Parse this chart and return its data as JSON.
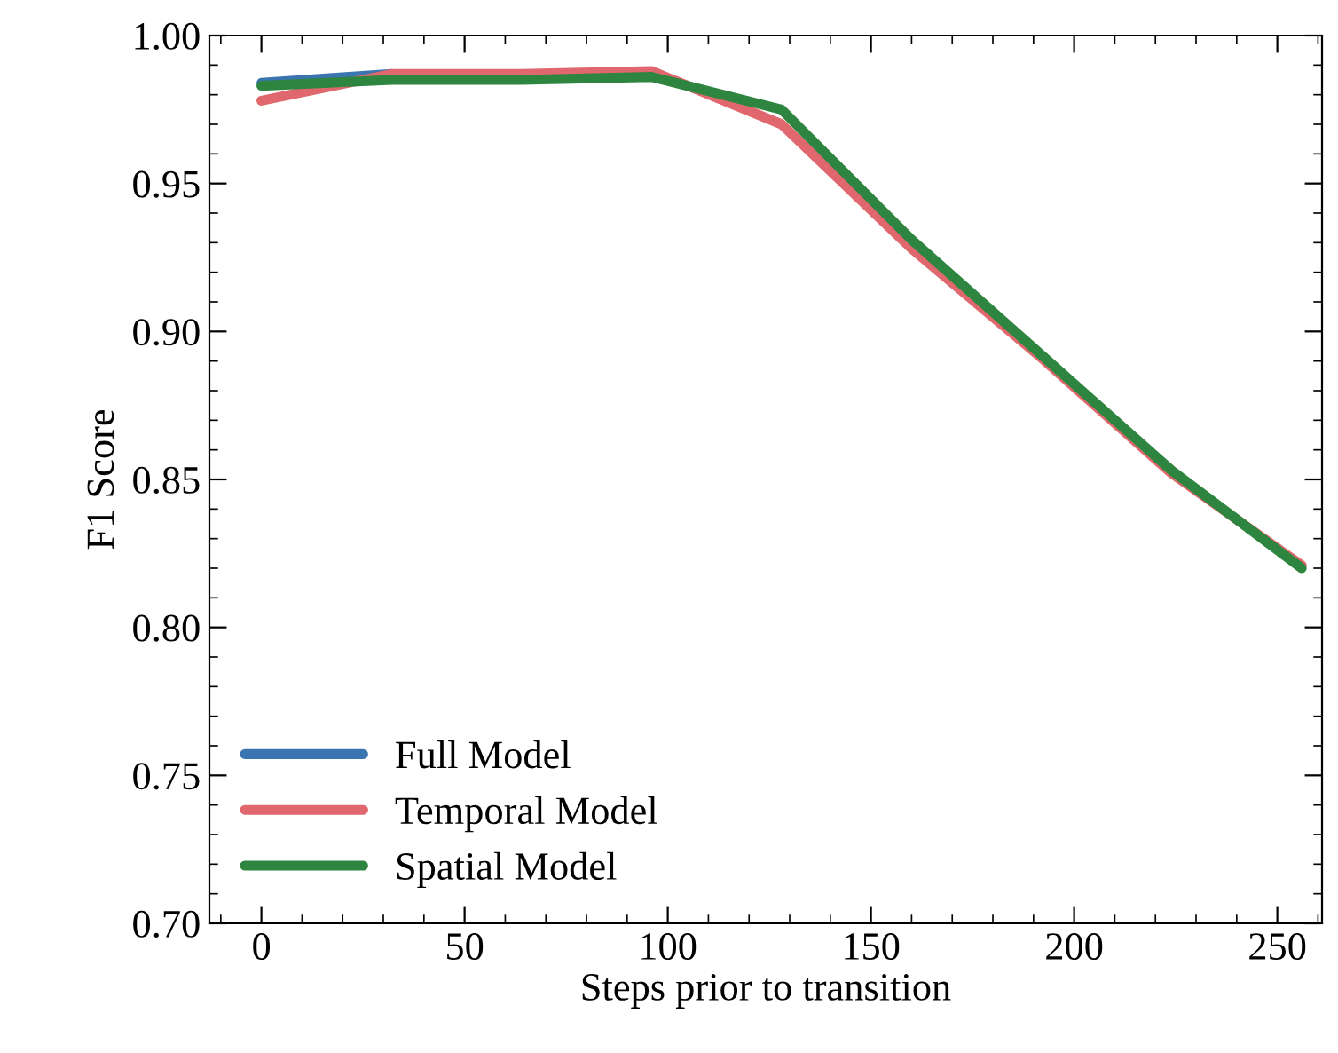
{
  "chart_data": {
    "type": "line",
    "xlabel": "Steps prior to transition",
    "ylabel": "F1 Score",
    "x": [
      0,
      32,
      64,
      96,
      128,
      160,
      192,
      224,
      256
    ],
    "series": [
      {
        "name": "Full Model",
        "color": "#3b75af",
        "values": [
          0.984,
          0.987,
          null,
          null,
          null,
          null,
          null,
          null,
          null
        ]
      },
      {
        "name": "Temporal Model",
        "color": "#e0676d",
        "values": [
          0.978,
          0.987,
          0.987,
          0.988,
          0.97,
          0.928,
          0.891,
          0.852,
          0.821
        ]
      },
      {
        "name": "Spatial Model",
        "color": "#2e8540",
        "values": [
          0.983,
          0.985,
          0.985,
          0.986,
          0.975,
          0.931,
          0.892,
          0.853,
          0.82
        ]
      }
    ],
    "xlim": [
      -12.8,
      261
    ],
    "ylim": [
      0.7,
      1.0
    ],
    "xticks": [
      0,
      50,
      100,
      150,
      200,
      250
    ],
    "yticks": [
      {
        "value": 0.7,
        "label": "0.70"
      },
      {
        "value": 0.75,
        "label": "0.75"
      },
      {
        "value": 0.8,
        "label": "0.80"
      },
      {
        "value": 0.85,
        "label": "0.85"
      },
      {
        "value": 0.9,
        "label": "0.90"
      },
      {
        "value": 0.95,
        "label": "0.95"
      },
      {
        "value": 1.0,
        "label": "1.00"
      }
    ],
    "grid": false,
    "legend": "bottom left",
    "marker": "none",
    "line_style": "solid"
  }
}
